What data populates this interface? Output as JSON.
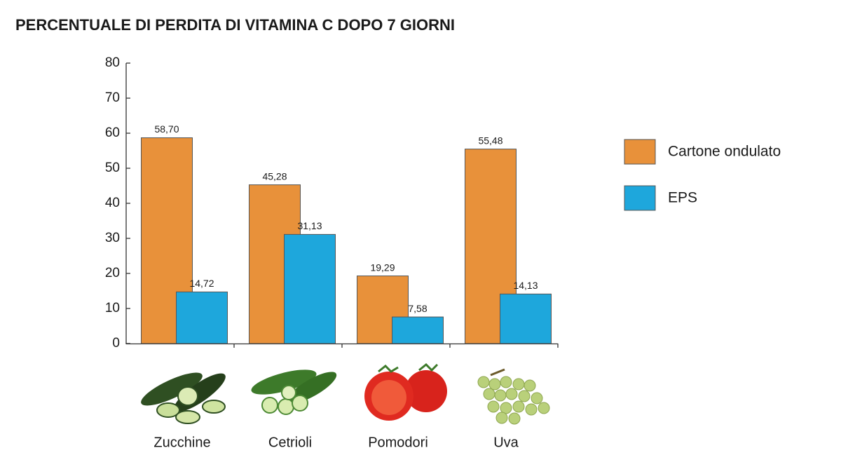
{
  "chart_data": {
    "type": "bar",
    "title": "PERCENTUALE DI PERDITA DI VITAMINA C DOPO 7 GIORNI",
    "categories": [
      "Zucchine",
      "Cetrioli",
      "Pomodori",
      "Uva"
    ],
    "series": [
      {
        "name": "Cartone ondulato",
        "color": "#e8913a",
        "values": [
          58.7,
          45.28,
          19.29,
          55.48
        ],
        "value_labels": [
          "58,70",
          "45,28",
          "19,29",
          "55,48"
        ]
      },
      {
        "name": "EPS",
        "color": "#1ea7dc",
        "values": [
          14.72,
          31.13,
          7.58,
          14.13
        ],
        "value_labels": [
          "14,72",
          "31,13",
          "7,58",
          "14,13"
        ]
      }
    ],
    "ylim": [
      0,
      80
    ],
    "yticks": [
      0,
      10,
      20,
      30,
      40,
      50,
      60,
      70,
      80
    ],
    "legend": "right"
  }
}
